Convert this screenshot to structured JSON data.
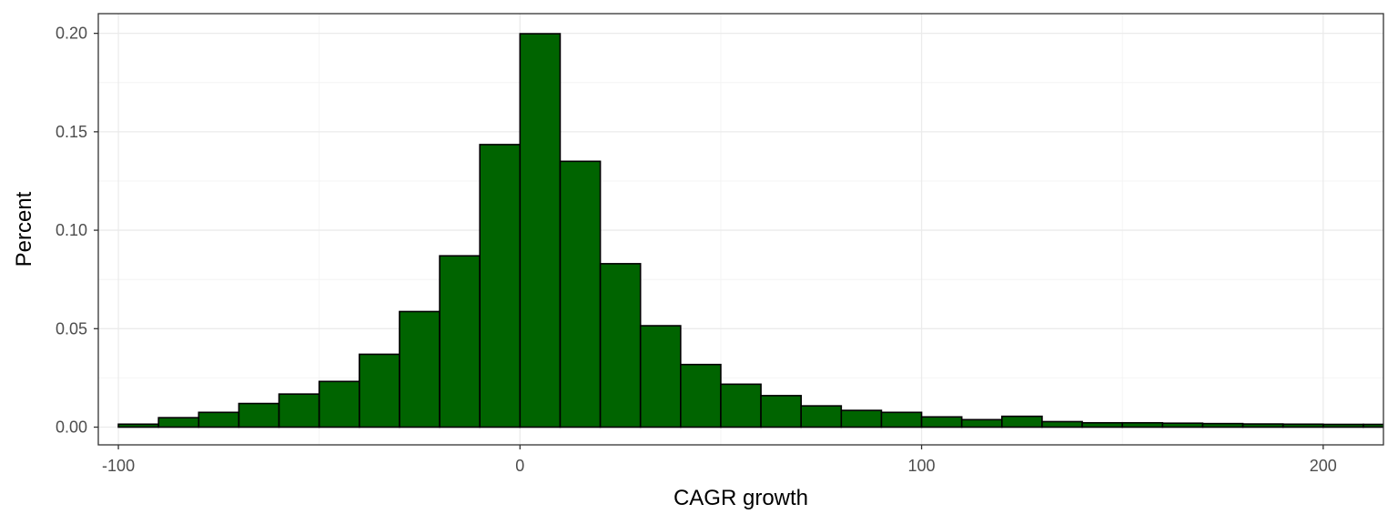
{
  "chart_data": {
    "type": "bar",
    "subtype": "histogram",
    "title": "",
    "xlabel": "CAGR growth",
    "ylabel": "Percent",
    "xlim": [
      -105,
      215
    ],
    "ylim": [
      -0.009,
      0.21
    ],
    "bin_width": 10,
    "x_ticks": [
      -100,
      0,
      100,
      200
    ],
    "x_tick_labels": [
      "-100",
      "0",
      "100",
      "200"
    ],
    "y_ticks": [
      0.0,
      0.05,
      0.1,
      0.15,
      0.2
    ],
    "y_tick_labels": [
      "0.00",
      "0.05",
      "0.10",
      "0.15",
      "0.20"
    ],
    "bins": [
      {
        "x0": -100,
        "x1": -90,
        "value": 0.0015
      },
      {
        "x0": -90,
        "x1": -80,
        "value": 0.0048
      },
      {
        "x0": -80,
        "x1": -70,
        "value": 0.0075
      },
      {
        "x0": -70,
        "x1": -60,
        "value": 0.012
      },
      {
        "x0": -60,
        "x1": -50,
        "value": 0.0168
      },
      {
        "x0": -50,
        "x1": -40,
        "value": 0.0232
      },
      {
        "x0": -40,
        "x1": -30,
        "value": 0.037
      },
      {
        "x0": -30,
        "x1": -20,
        "value": 0.0587
      },
      {
        "x0": -20,
        "x1": -10,
        "value": 0.087
      },
      {
        "x0": -10,
        "x1": 0,
        "value": 0.1435
      },
      {
        "x0": 0,
        "x1": 10,
        "value": 0.1998
      },
      {
        "x0": 10,
        "x1": 20,
        "value": 0.135
      },
      {
        "x0": 20,
        "x1": 30,
        "value": 0.083
      },
      {
        "x0": 30,
        "x1": 40,
        "value": 0.0515
      },
      {
        "x0": 40,
        "x1": 50,
        "value": 0.0318
      },
      {
        "x0": 50,
        "x1": 60,
        "value": 0.0218
      },
      {
        "x0": 60,
        "x1": 70,
        "value": 0.016
      },
      {
        "x0": 70,
        "x1": 80,
        "value": 0.0108
      },
      {
        "x0": 80,
        "x1": 90,
        "value": 0.0085
      },
      {
        "x0": 90,
        "x1": 100,
        "value": 0.0075
      },
      {
        "x0": 100,
        "x1": 110,
        "value": 0.0052
      },
      {
        "x0": 110,
        "x1": 120,
        "value": 0.0038
      },
      {
        "x0": 120,
        "x1": 130,
        "value": 0.0055
      },
      {
        "x0": 130,
        "x1": 140,
        "value": 0.0028
      },
      {
        "x0": 140,
        "x1": 150,
        "value": 0.0022
      },
      {
        "x0": 150,
        "x1": 160,
        "value": 0.0022
      },
      {
        "x0": 160,
        "x1": 170,
        "value": 0.002
      },
      {
        "x0": 170,
        "x1": 180,
        "value": 0.0018
      },
      {
        "x0": 180,
        "x1": 190,
        "value": 0.0016
      },
      {
        "x0": 190,
        "x1": 200,
        "value": 0.0015
      },
      {
        "x0": 200,
        "x1": 210,
        "value": 0.0014
      },
      {
        "x0": 210,
        "x1": 220,
        "value": 0.0014
      }
    ],
    "grid": true,
    "legend": "none",
    "colors": {
      "bar_fill": "#006400",
      "bar_stroke": "#000000",
      "grid_major": "#ebebeb",
      "grid_minor": "#f4f4f4",
      "panel_border": "#333333",
      "tick_text": "#4d4d4d"
    }
  }
}
